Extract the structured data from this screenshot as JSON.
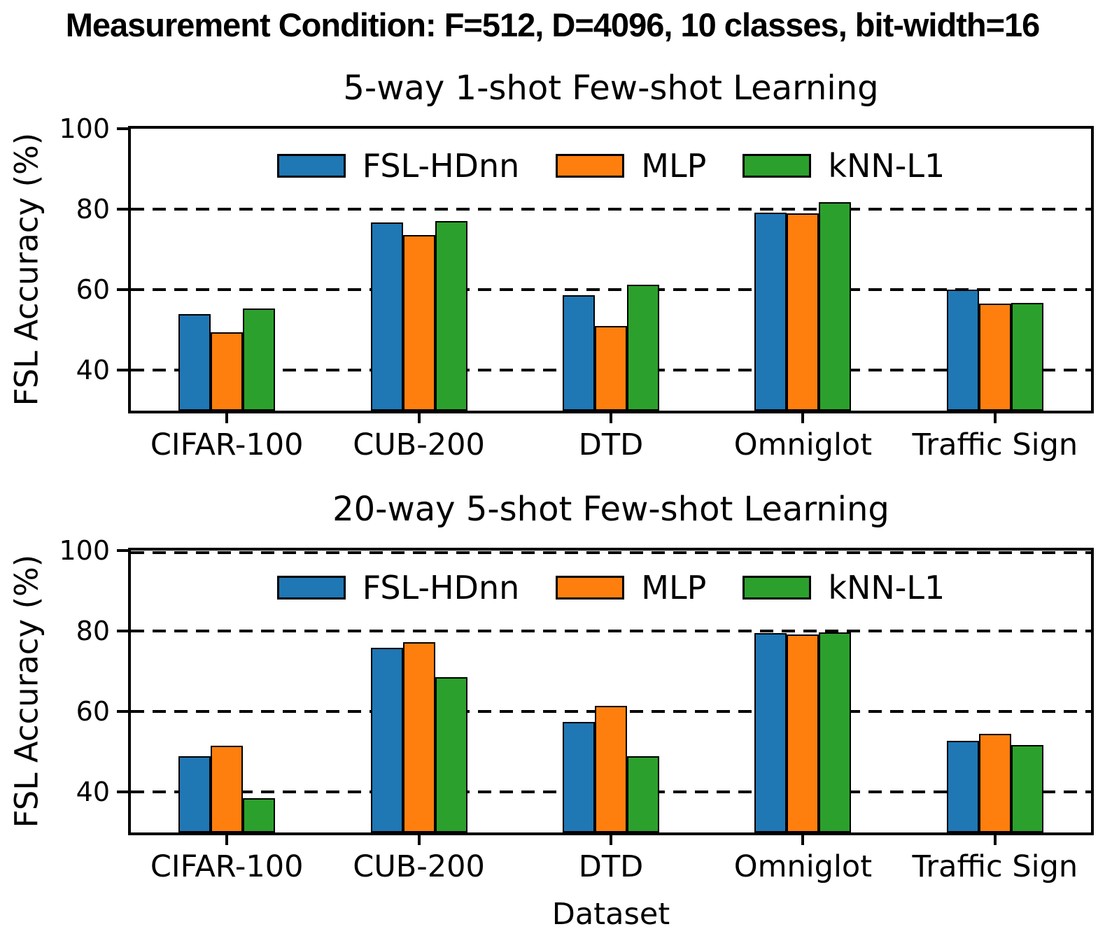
{
  "figure": {
    "title": "Measurement Condition: F=512, D=4096, 10 classes, bit-width=16"
  },
  "chart_data": [
    {
      "type": "bar",
      "title": "5-way 1-shot Few-shot Learning",
      "categories": [
        "CIFAR-100",
        "CUB-200",
        "DTD",
        "Omniglot",
        "Traffic Sign"
      ],
      "series": [
        {
          "name": "FSL-HDnn",
          "color": "#1f77b4",
          "values": [
            54.0,
            76.8,
            58.7,
            79.2,
            60.1
          ]
        },
        {
          "name": "MLP",
          "color": "#ff7f0e",
          "values": [
            49.5,
            73.6,
            51.1,
            78.9,
            56.6
          ]
        },
        {
          "name": "kNN-L1",
          "color": "#2ca02c",
          "values": [
            55.4,
            77.1,
            61.2,
            81.7,
            56.7
          ]
        }
      ],
      "ylabel": "FSL Accuracy (%)",
      "xlabel": "",
      "yticks": [
        40,
        60,
        80,
        100
      ],
      "ylim": [
        30,
        100
      ],
      "grid": "horizontal-dashed",
      "legend_position": "upper center"
    },
    {
      "type": "bar",
      "title": "20-way 5-shot Few-shot Learning",
      "categories": [
        "CIFAR-100",
        "CUB-200",
        "DTD",
        "Omniglot",
        "Traffic Sign"
      ],
      "series": [
        {
          "name": "FSL-HDnn",
          "color": "#1f77b4",
          "values": [
            49.0,
            75.8,
            57.4,
            79.5,
            52.8
          ]
        },
        {
          "name": "MLP",
          "color": "#ff7f0e",
          "values": [
            51.5,
            77.2,
            61.4,
            79.2,
            54.5
          ]
        },
        {
          "name": "kNN-L1",
          "color": "#2ca02c",
          "values": [
            38.5,
            68.5,
            48.9,
            79.6,
            51.8
          ]
        }
      ],
      "ylabel": "FSL Accuracy (%)",
      "xlabel": "Dataset",
      "yticks": [
        40,
        60,
        80,
        100
      ],
      "ylim": [
        30,
        100
      ],
      "grid": "horizontal-dashed",
      "legend_position": "upper center"
    }
  ]
}
